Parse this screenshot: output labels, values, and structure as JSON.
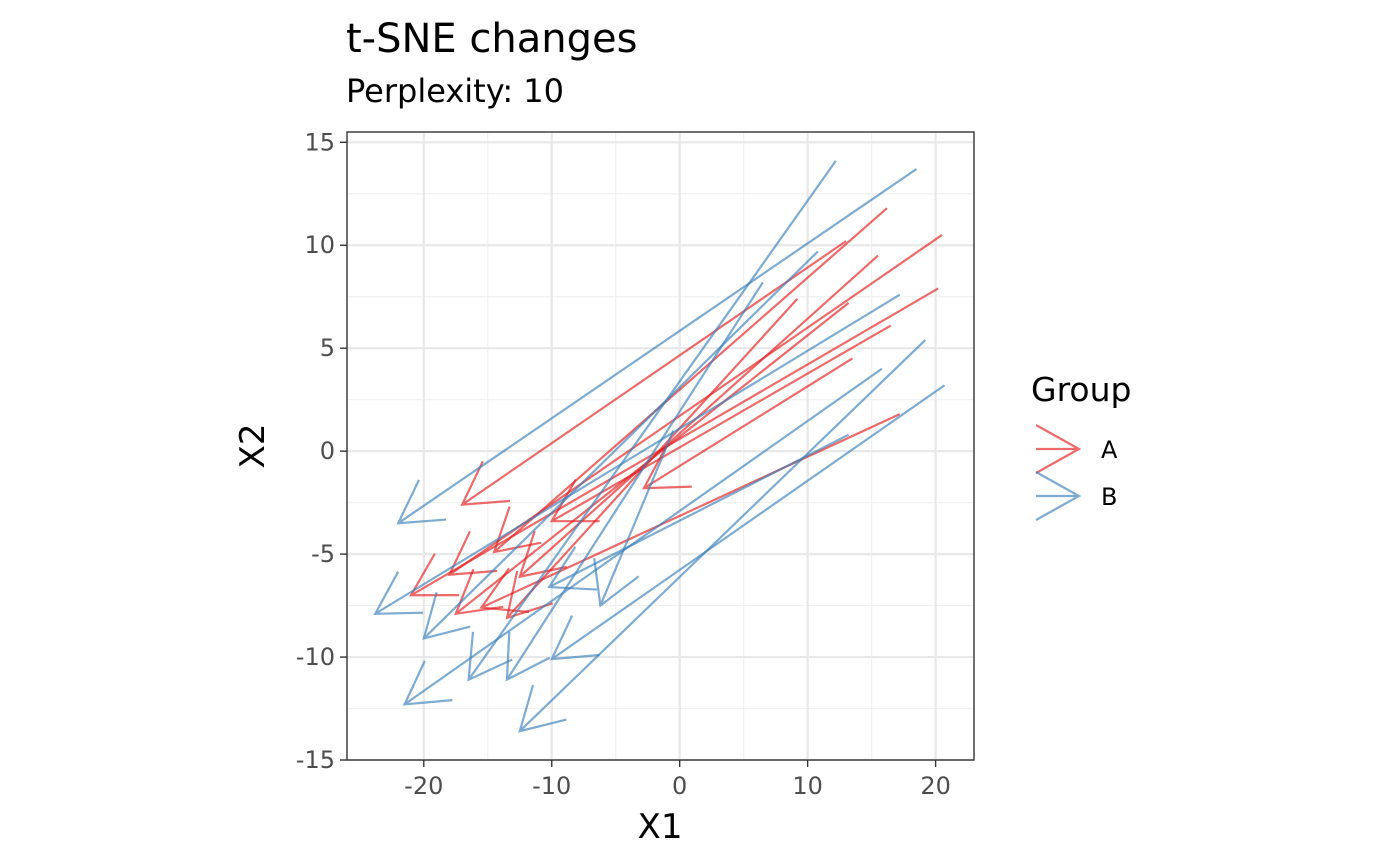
{
  "chart_data": {
    "type": "arrow",
    "title": "t-SNE changes",
    "subtitle": "Perplexity: 10",
    "xlabel": "X1",
    "ylabel": "X2",
    "xlim": [
      -26,
      23
    ],
    "ylim": [
      -15,
      15.5
    ],
    "x_ticks": [
      -20,
      -10,
      0,
      10,
      20
    ],
    "x_tick_labels": [
      "-20",
      "-10",
      "0",
      "10",
      "20"
    ],
    "y_ticks": [
      -15,
      -10,
      -5,
      0,
      5,
      10,
      15
    ],
    "y_tick_labels": [
      "-15",
      "-10",
      "-5",
      "0",
      "5",
      "10",
      "15"
    ],
    "grid": true,
    "legend": {
      "title": "Group",
      "position": "right",
      "entries": [
        {
          "label": "A",
          "color": "#E41A1C"
        },
        {
          "label": "B",
          "color": "#377EB8"
        }
      ]
    },
    "series": [
      {
        "name": "A",
        "color": "#E41A1C",
        "segments": [
          {
            "from": [
              13.0,
              10.2
            ],
            "to": [
              -17.0,
              -2.6
            ]
          },
          {
            "from": [
              16.2,
              11.8
            ],
            "to": [
              -14.5,
              -4.9
            ]
          },
          {
            "from": [
              15.5,
              9.5
            ],
            "to": [
              -12.5,
              -6.1
            ]
          },
          {
            "from": [
              20.5,
              10.5
            ],
            "to": [
              -18.0,
              -6.0
            ]
          },
          {
            "from": [
              20.2,
              7.9
            ],
            "to": [
              -21.0,
              -7.0
            ]
          },
          {
            "from": [
              9.2,
              7.4
            ],
            "to": [
              -13.5,
              -8.1
            ]
          },
          {
            "from": [
              13.2,
              7.2
            ],
            "to": [
              -17.5,
              -7.9
            ]
          },
          {
            "from": [
              16.5,
              6.1
            ],
            "to": [
              -10.0,
              -3.4
            ]
          },
          {
            "from": [
              13.5,
              4.5
            ],
            "to": [
              -2.8,
              -1.8
            ]
          },
          {
            "from": [
              17.2,
              1.8
            ],
            "to": [
              -15.5,
              -7.6
            ]
          }
        ]
      },
      {
        "name": "B",
        "color": "#377EB8",
        "segments": [
          {
            "from": [
              18.5,
              13.7
            ],
            "to": [
              -22.0,
              -3.5
            ]
          },
          {
            "from": [
              12.2,
              14.1
            ],
            "to": [
              -16.5,
              -11.1
            ]
          },
          {
            "from": [
              10.8,
              9.7
            ],
            "to": [
              -20.0,
              -9.1
            ]
          },
          {
            "from": [
              6.5,
              8.2
            ],
            "to": [
              -13.5,
              -11.1
            ]
          },
          {
            "from": [
              17.2,
              7.6
            ],
            "to": [
              -23.8,
              -7.9
            ]
          },
          {
            "from": [
              19.2,
              5.4
            ],
            "to": [
              -12.5,
              -13.6
            ]
          },
          {
            "from": [
              15.8,
              4.0
            ],
            "to": [
              -21.5,
              -12.3
            ]
          },
          {
            "from": [
              20.7,
              3.2
            ],
            "to": [
              -10.0,
              -10.1
            ]
          },
          {
            "from": [
              13.2,
              0.8
            ],
            "to": [
              -10.2,
              -6.6
            ]
          },
          {
            "from": [
              -0.5,
              1.0
            ],
            "to": [
              -6.2,
              -7.5
            ]
          }
        ]
      }
    ]
  }
}
